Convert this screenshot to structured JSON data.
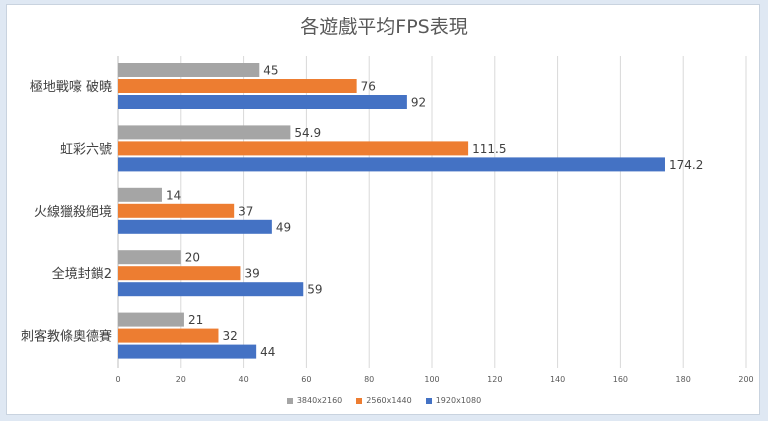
{
  "chart_data": {
    "type": "bar",
    "orientation": "horizontal",
    "title": "各遊戲平均FPS表現",
    "categories": [
      "極地戰嚎 破曉",
      "虹彩六號",
      "火線獵殺絕境",
      "全境封鎖2",
      "刺客教條奧德賽"
    ],
    "series": [
      {
        "name": "3840x2160",
        "color": "#a5a5a5",
        "values": [
          45,
          54.9,
          14,
          20,
          21
        ],
        "labels": [
          "45",
          "54.9",
          "14",
          "20",
          "21"
        ]
      },
      {
        "name": "2560x1440",
        "color": "#ed7d31",
        "values": [
          76,
          111.5,
          37,
          39,
          32
        ],
        "labels": [
          "76",
          "111.5",
          "37",
          "39",
          "32"
        ]
      },
      {
        "name": "1920x1080",
        "color": "#4472c4",
        "values": [
          92,
          174.2,
          49,
          59,
          44
        ],
        "labels": [
          "92",
          "174.2",
          "49",
          "59",
          "44"
        ]
      }
    ],
    "xlim": [
      0,
      200
    ],
    "x_ticks": [
      "0",
      "20",
      "40",
      "60",
      "80",
      "100",
      "120",
      "140",
      "160",
      "180",
      "200"
    ],
    "grid": "vertical",
    "legend_position": "bottom"
  }
}
